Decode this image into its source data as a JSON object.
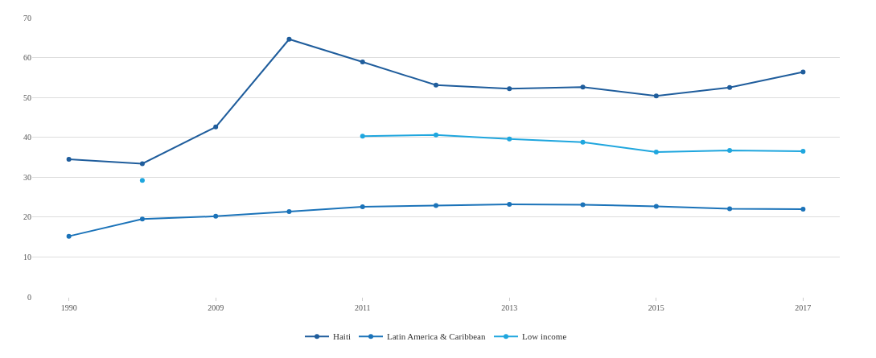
{
  "chart_data": {
    "type": "line",
    "categories": [
      "1990",
      null,
      "2009",
      null,
      "2011",
      null,
      "2013",
      null,
      "2015",
      null,
      "2017"
    ],
    "series": [
      {
        "name": "Haiti",
        "color": "#1f5d9c",
        "values": [
          34.5,
          33.4,
          42.6,
          64.6,
          58.9,
          53.1,
          52.2,
          52.6,
          50.4,
          52.5,
          56.4
        ]
      },
      {
        "name": "Latin America & Caribbean",
        "color": "#1b73b9",
        "values": [
          15.2,
          19.5,
          20.2,
          21.4,
          22.6,
          22.9,
          23.2,
          23.1,
          22.7,
          22.1,
          22.0
        ]
      },
      {
        "name": "Low income",
        "color": "#1fa6de",
        "values": [
          null,
          29.2,
          null,
          null,
          40.3,
          40.6,
          39.6,
          38.8,
          36.3,
          36.7,
          36.5
        ]
      }
    ],
    "ylim": [
      0,
      70
    ],
    "yticks": [
      0,
      10,
      20,
      30,
      40,
      50,
      60,
      70
    ],
    "grid": "y",
    "legend": "bottom",
    "marker": "circle",
    "line_style": "solid"
  }
}
